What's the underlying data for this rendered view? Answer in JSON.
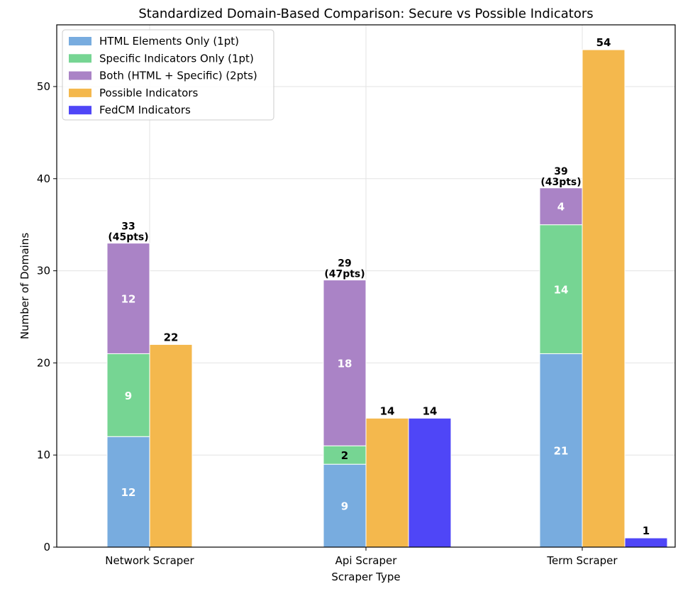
{
  "chart_data": {
    "type": "bar",
    "title": "Standardized Domain-Based Comparison: Secure vs Possible Indicators",
    "xlabel": "Scraper Type",
    "ylabel": "Number of Domains",
    "ylim": [
      0,
      56.7
    ],
    "yticks": [
      0,
      10,
      20,
      30,
      40,
      50
    ],
    "grid": true,
    "legend_position": "top-left",
    "categories": [
      "Network Scraper",
      "Api Scraper",
      "Term Scraper"
    ],
    "stacked_series": [
      {
        "name": "HTML Elements Only (1pt)",
        "color": "#78acdf",
        "values": [
          12,
          9,
          21
        ],
        "labels": [
          "12",
          "9",
          "21"
        ]
      },
      {
        "name": "Specific Indicators Only (1pt)",
        "color": "#76d593",
        "values": [
          9,
          2,
          14
        ],
        "labels": [
          "9",
          "2",
          "14"
        ]
      },
      {
        "name": "Both (HTML + Specific) (2pts)",
        "color": "#aa83c6",
        "values": [
          12,
          18,
          4
        ],
        "labels": [
          "12",
          "18",
          "4"
        ]
      }
    ],
    "stack_totals": [
      {
        "count": "33",
        "points": "(45pts)"
      },
      {
        "count": "29",
        "points": "(47pts)"
      },
      {
        "count": "39",
        "points": "(43pts)"
      }
    ],
    "side_series": [
      {
        "name": "Possible Indicators",
        "color": "#f4b84d",
        "values": [
          22,
          14,
          54
        ],
        "labels": [
          "22",
          "14",
          "54"
        ]
      },
      {
        "name": "FedCM Indicators",
        "color": "#4f46f7",
        "values": [
          0,
          14,
          1
        ],
        "labels": [
          "",
          "14",
          "1"
        ]
      }
    ],
    "legend": [
      {
        "name": "HTML Elements Only (1pt)",
        "color": "#78acdf"
      },
      {
        "name": "Specific Indicators Only (1pt)",
        "color": "#76d593"
      },
      {
        "name": "Both (HTML + Specific) (2pts)",
        "color": "#aa83c6"
      },
      {
        "name": "Possible Indicators",
        "color": "#f4b84d"
      },
      {
        "name": "FedCM Indicators",
        "color": "#4f46f7"
      }
    ]
  }
}
